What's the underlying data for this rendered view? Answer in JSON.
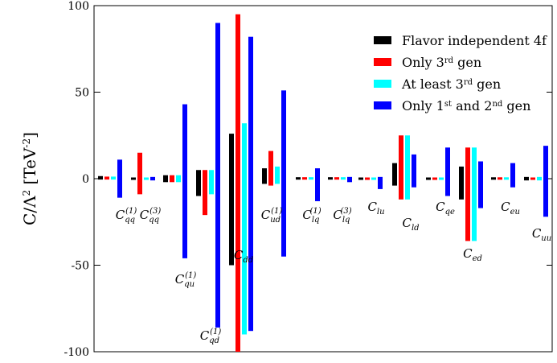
{
  "chart_data": {
    "type": "bar",
    "ylabel": "C/Λ² [TeV⁻²]",
    "ylim": [
      -100,
      100
    ],
    "yticks": [
      -100,
      -50,
      0,
      50,
      100
    ],
    "grid": false,
    "legend_position": "top-right",
    "series": [
      {
        "name": "Flavor independent 4f",
        "color": "#000000"
      },
      {
        "name": "Only 3rd gen",
        "color": "#ff0000"
      },
      {
        "name": "At least  3rd gen",
        "color": "#00ffff"
      },
      {
        "name": "Only 1st and 2nd gen",
        "color": "#0000ff"
      }
    ],
    "categories": [
      {
        "label": "C_qq^(1)",
        "base": "C",
        "sub": "qq",
        "sup": "(1)",
        "ranges": [
          [
            -0.5,
            1.5
          ],
          [
            -0.5,
            1.2
          ],
          [
            -0.5,
            1.2
          ],
          [
            -11,
            11
          ]
        ]
      },
      {
        "label": "C_qq^(3)",
        "base": "C",
        "sub": "qq",
        "sup": "(3)",
        "ranges": [
          [
            -0.3,
            0.3
          ],
          [
            -9,
            15
          ],
          [
            -0.5,
            0.5
          ],
          [
            -1,
            1
          ]
        ]
      },
      {
        "label": "C_qu^(1)",
        "base": "C",
        "sub": "qu",
        "sup": "(1)",
        "ranges": [
          [
            -2,
            2
          ],
          [
            -2,
            2
          ],
          [
            -2,
            2
          ],
          [
            -46,
            43
          ]
        ]
      },
      {
        "label": "C_qd^(1)",
        "base": "C",
        "sub": "qd",
        "sup": "(1)",
        "ranges": [
          [
            -10,
            5
          ],
          [
            -21,
            5
          ],
          [
            -9,
            5
          ],
          [
            -86,
            90
          ]
        ]
      },
      {
        "label": "C_dd",
        "base": "C",
        "sub": "dd",
        "sup": "",
        "ranges": [
          [
            -50,
            26
          ],
          [
            -100,
            95
          ],
          [
            -90,
            32
          ],
          [
            -88,
            82
          ]
        ]
      },
      {
        "label": "C_ud^(1)",
        "base": "C",
        "sub": "ud",
        "sup": "(1)",
        "ranges": [
          [
            -3,
            6
          ],
          [
            -4,
            16
          ],
          [
            -3,
            7
          ],
          [
            -45,
            51
          ]
        ]
      },
      {
        "label": "C_lq^(1)",
        "base": "C",
        "sub": "lq",
        "sup": "(1)",
        "ranges": [
          [
            -0.3,
            0.6
          ],
          [
            -0.3,
            0.6
          ],
          [
            -0.3,
            0.6
          ],
          [
            -13,
            6
          ]
        ]
      },
      {
        "label": "C_lq^(3)",
        "base": "C",
        "sub": "lq",
        "sup": "(3)",
        "ranges": [
          [
            -0.3,
            0.6
          ],
          [
            -0.3,
            0.6
          ],
          [
            -0.3,
            0.6
          ],
          [
            -2,
            1
          ]
        ]
      },
      {
        "label": "C_lu",
        "base": "C",
        "sub": "lu",
        "sup": "",
        "ranges": [
          [
            -0.3,
            0.3
          ],
          [
            -0.3,
            0.3
          ],
          [
            -0.3,
            0.3
          ],
          [
            -6,
            1
          ]
        ]
      },
      {
        "label": "C_ld",
        "base": "C",
        "sub": "ld",
        "sup": "",
        "ranges": [
          [
            -4,
            9
          ],
          [
            -12,
            25
          ],
          [
            -12,
            25
          ],
          [
            -5,
            14
          ]
        ]
      },
      {
        "label": "C_qe",
        "base": "C",
        "sub": "qe",
        "sup": "",
        "ranges": [
          [
            -0.5,
            0.5
          ],
          [
            -0.5,
            0.5
          ],
          [
            -0.5,
            0.5
          ],
          [
            -10,
            18
          ]
        ]
      },
      {
        "label": "C_ed",
        "base": "C",
        "sub": "ed",
        "sup": "",
        "ranges": [
          [
            -12,
            7
          ],
          [
            -36,
            18
          ],
          [
            -36,
            18
          ],
          [
            -17,
            10
          ]
        ]
      },
      {
        "label": "C_eu",
        "base": "C",
        "sub": "eu",
        "sup": "",
        "ranges": [
          [
            -0.3,
            0.5
          ],
          [
            -0.3,
            0.5
          ],
          [
            -0.3,
            0.5
          ],
          [
            -5,
            9
          ]
        ]
      },
      {
        "label": "C_uu",
        "base": "C",
        "sub": "uu",
        "sup": "",
        "ranges": [
          [
            -1,
            1
          ],
          [
            -0.3,
            0.3
          ],
          [
            -1,
            1
          ],
          [
            -22,
            19
          ]
        ]
      }
    ]
  },
  "legend_text": {
    "s0": {
      "text": "Flavor independent 4f"
    },
    "s1": {
      "pre": "Only 3",
      "sup": "rd",
      "post": " gen"
    },
    "s2": {
      "pre": "At least  3",
      "sup": "rd",
      "post": " gen"
    },
    "s3": {
      "pre": "Only 1",
      "sup": "st",
      "mid": " and 2",
      "sup2": "nd",
      "post": " gen"
    }
  },
  "axis_label": {
    "base": "C/Λ",
    "sup": "2",
    "mid": " [TeV",
    "sup2": "-2",
    "post": "]"
  }
}
